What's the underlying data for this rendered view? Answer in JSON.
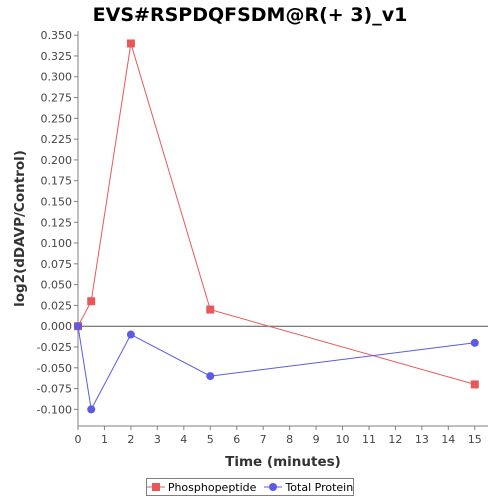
{
  "chart_data": {
    "type": "line",
    "title": "EVS#RSPDQFSDM@R(+ 3)_v1",
    "xlabel": "Time (minutes)",
    "ylabel": "log2(dDAVP/Control)",
    "xlim": [
      0,
      15.5
    ],
    "ylim": [
      -0.12,
      0.355
    ],
    "x_ticks": [
      0,
      1,
      2,
      3,
      4,
      5,
      6,
      7,
      8,
      9,
      10,
      11,
      12,
      13,
      14,
      15
    ],
    "y_ticks": [
      -0.1,
      -0.075,
      -0.05,
      -0.025,
      0.0,
      0.025,
      0.05,
      0.075,
      0.1,
      0.125,
      0.15,
      0.175,
      0.2,
      0.225,
      0.25,
      0.275,
      0.3,
      0.325,
      0.35
    ],
    "zero_line": true,
    "grid": false,
    "legend_position": "bottom",
    "series": [
      {
        "name": "Phosphopeptide",
        "color": "#e8585a",
        "marker": "square",
        "x": [
          0,
          0.5,
          2,
          5,
          15
        ],
        "y": [
          0.0,
          0.03,
          0.34,
          0.02,
          -0.07
        ]
      },
      {
        "name": "Total Protein",
        "color": "#5b5be8",
        "marker": "circle",
        "x": [
          0,
          0.5,
          2,
          5,
          15
        ],
        "y": [
          0.0,
          -0.1,
          -0.01,
          -0.06,
          -0.02
        ]
      }
    ]
  }
}
